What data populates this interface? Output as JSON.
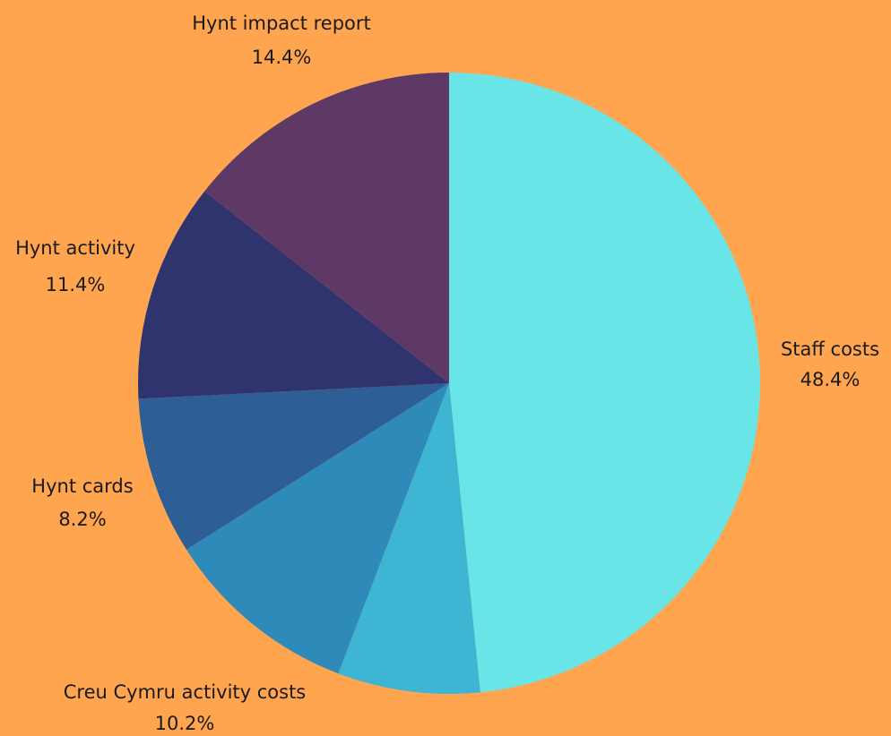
{
  "chart_data": {
    "type": "pie",
    "start_angle_deg": 0,
    "direction": "clockwise",
    "legend": "none",
    "slices": [
      {
        "label": "Staff costs",
        "value": 48.4,
        "value_label": "48.4%",
        "color": "#69E5E8"
      },
      {
        "label": "",
        "value": 7.4,
        "value_label": "",
        "color": "#3FB5D4"
      },
      {
        "label": "Creu Cymru activity costs",
        "value": 10.2,
        "value_label": "10.2%",
        "color": "#2E8BB9"
      },
      {
        "label": "Hynt cards",
        "value": 8.2,
        "value_label": "8.2%",
        "color": "#2D5F96"
      },
      {
        "label": "Hynt activity",
        "value": 11.4,
        "value_label": "11.4%",
        "color": "#30346E"
      },
      {
        "label": "Hynt impact report",
        "value": 14.4,
        "value_label": "14.4%",
        "color": "#5E3966"
      }
    ]
  }
}
